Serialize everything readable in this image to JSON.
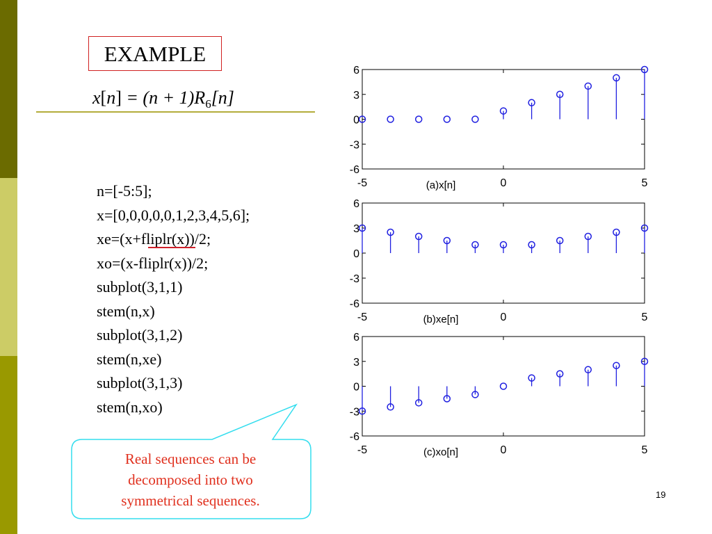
{
  "slide": {
    "title": "EXAMPLE",
    "formula": {
      "lhs_var": "x",
      "lhs_idx": "n",
      "rhs_text": "= (n + 1)R",
      "rhs_sub": "6",
      "rhs_idx": "[n]"
    },
    "code_lines": [
      "n=[-5:5];",
      "x=[0,0,0,0,0,1,2,3,4,5,6];",
      "xe=(x+fliplr(x))/2;",
      "xo=(x-fliplr(x))/2;",
      "subplot(3,1,1)",
      "stem(n,x)",
      "subplot(3,1,2)",
      "stem(n,xe)",
      "subplot(3,1,3)",
      "stem(n,xo)"
    ],
    "callout_lines": [
      "Real sequences can be",
      "decomposed into two",
      "symmetrical sequences."
    ],
    "page_number": "19",
    "colors": {
      "sidebar_dark": "#6b6b00",
      "sidebar_light": "#cccc66",
      "sidebar_olive": "#999900",
      "title_border": "#d02020",
      "callout_border": "#33ddee",
      "callout_text": "#e0301e",
      "stem_color": "#1f1fe0"
    }
  },
  "chart_data": [
    {
      "type": "stem",
      "xlabel": "(a)x[n]",
      "xlim": [
        -5,
        5
      ],
      "ylim": [
        -6,
        6
      ],
      "xticks": [
        -5,
        0,
        5
      ],
      "yticks": [
        -6,
        -3,
        0,
        3,
        6
      ],
      "x": [
        -5,
        -4,
        -3,
        -2,
        -1,
        0,
        1,
        2,
        3,
        4,
        5
      ],
      "values": [
        0,
        0,
        0,
        0,
        0,
        1,
        2,
        3,
        4,
        5,
        6
      ]
    },
    {
      "type": "stem",
      "xlabel": "(b)xe[n]",
      "xlim": [
        -5,
        5
      ],
      "ylim": [
        -6,
        6
      ],
      "xticks": [
        -5,
        0,
        5
      ],
      "yticks": [
        -6,
        -3,
        0,
        3,
        6
      ],
      "x": [
        -5,
        -4,
        -3,
        -2,
        -1,
        0,
        1,
        2,
        3,
        4,
        5
      ],
      "values": [
        3,
        2.5,
        2,
        1.5,
        1,
        1,
        1,
        1.5,
        2,
        2.5,
        3
      ]
    },
    {
      "type": "stem",
      "xlabel": "(c)xo[n]",
      "xlim": [
        -5,
        5
      ],
      "ylim": [
        -6,
        6
      ],
      "xticks": [
        -5,
        0,
        5
      ],
      "yticks": [
        -6,
        -3,
        0,
        3,
        6
      ],
      "x": [
        -5,
        -4,
        -3,
        -2,
        -1,
        0,
        1,
        2,
        3,
        4,
        5
      ],
      "values": [
        -3,
        -2.5,
        -2,
        -1.5,
        -1,
        0,
        1,
        1.5,
        2,
        2.5,
        3
      ]
    }
  ]
}
